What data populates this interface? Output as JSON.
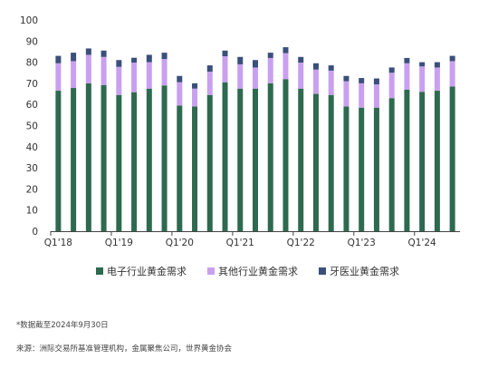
{
  "chart_data": {
    "type": "bar",
    "stacked": true,
    "title": "",
    "xlabel": "",
    "ylabel": "",
    "ylim": [
      0,
      100
    ],
    "yticks": [
      0,
      10,
      20,
      30,
      40,
      50,
      60,
      70,
      80,
      90,
      100
    ],
    "x_tick_labels": [
      "Q1'18",
      "Q1'19",
      "Q1'20",
      "Q1'21",
      "Q1'22",
      "Q1'23",
      "Q1'24"
    ],
    "x_tick_category_index": [
      0,
      4,
      8,
      12,
      16,
      20,
      24
    ],
    "categories": [
      "Q1'18",
      "Q2'18",
      "Q3'18",
      "Q4'18",
      "Q1'19",
      "Q2'19",
      "Q3'19",
      "Q4'19",
      "Q1'20",
      "Q2'20",
      "Q3'20",
      "Q4'20",
      "Q1'21",
      "Q2'21",
      "Q3'21",
      "Q4'21",
      "Q1'22",
      "Q2'22",
      "Q3'22",
      "Q4'22",
      "Q1'23",
      "Q2'23",
      "Q3'23",
      "Q4'23",
      "Q1'24",
      "Q2'24",
      "Q3'24"
    ],
    "series": [
      {
        "name": "电子行业黄金需求",
        "color": "#2d6a4f",
        "values": [
          66.5,
          67.8,
          70.0,
          69.2,
          64.5,
          65.8,
          67.5,
          69.0,
          59.5,
          59.0,
          64.5,
          70.5,
          67.5,
          67.5,
          70.0,
          72.0,
          67.5,
          65.0,
          64.5,
          59.0,
          58.5,
          58.5,
          63.0,
          67.0,
          66.0,
          66.5,
          68.5
        ]
      },
      {
        "name": "其他行业黄金需求",
        "color": "#c9a0f0",
        "values": [
          13.0,
          12.7,
          13.5,
          13.3,
          13.3,
          14.0,
          12.5,
          12.5,
          11.0,
          8.5,
          11.0,
          12.3,
          11.5,
          10.0,
          12.0,
          12.3,
          12.3,
          11.5,
          11.5,
          12.0,
          11.5,
          11.0,
          12.0,
          12.5,
          12.0,
          11.0,
          12.0
        ]
      },
      {
        "name": "牙医业黄金需求",
        "color": "#3a4f7a",
        "values": [
          3.5,
          4.0,
          3.0,
          3.0,
          3.2,
          2.3,
          3.5,
          3.0,
          3.0,
          2.5,
          3.0,
          2.7,
          3.5,
          3.5,
          2.5,
          2.8,
          2.7,
          3.0,
          2.5,
          2.5,
          2.5,
          2.8,
          2.5,
          2.5,
          2.0,
          2.5,
          2.5
        ]
      }
    ],
    "grid": false,
    "legend": "bottom"
  },
  "notes": {
    "footnote": "*数据截至2024年9月30日",
    "source": "来源：洲际交易所基准管理机构，金属聚焦公司，世界黄金协会"
  }
}
